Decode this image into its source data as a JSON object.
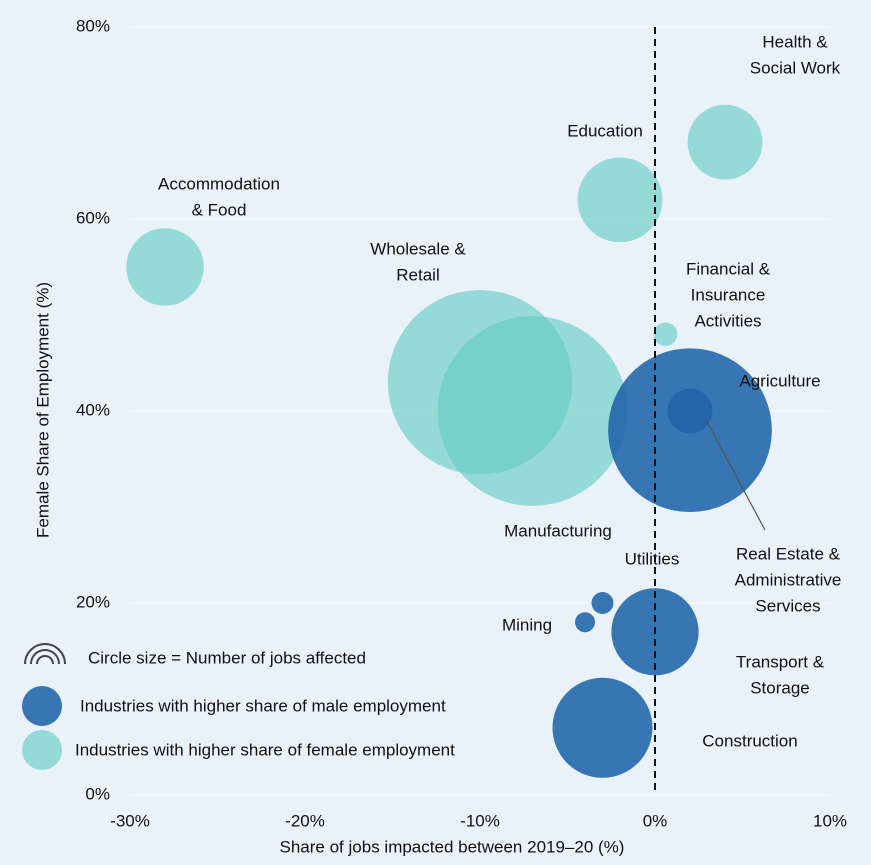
{
  "chart_data": {
    "type": "scatter",
    "x_label": "Share of jobs impacted between 2019–20 (%)",
    "y_label": "Female Share of Employment (%)",
    "size_legend": "Circle size = Number of jobs affected",
    "xlim": [
      -30,
      10
    ],
    "ylim": [
      0,
      80
    ],
    "xticks": [
      {
        "value": -30,
        "label": "-30%"
      },
      {
        "value": -20,
        "label": "-20%"
      },
      {
        "value": -10,
        "label": "-10%"
      },
      {
        "value": 0,
        "label": "0%"
      },
      {
        "value": 10,
        "label": "10%"
      }
    ],
    "yticks": [
      {
        "value": 0,
        "label": "0%"
      },
      {
        "value": 20,
        "label": "20%"
      },
      {
        "value": 40,
        "label": "40%"
      },
      {
        "value": 60,
        "label": "60%"
      },
      {
        "value": 80,
        "label": "80%"
      }
    ],
    "vline": 0,
    "grid": true,
    "series": [
      {
        "name": "Industries with higher share of female employment",
        "color": "#62cbc3",
        "labels": [
          [
            "Health &",
            "Social Work"
          ],
          [
            "Education"
          ],
          [
            "Accommodation",
            "& Food"
          ],
          [
            "Wholesale &",
            "Retail"
          ],
          [
            "Manufacturing"
          ],
          [
            "Financial &",
            "Insurance",
            "Activities"
          ]
        ],
        "x": [
          4,
          -2,
          -28,
          -10,
          -7,
          0.6
        ],
        "values": [
          68,
          62,
          55,
          43,
          40,
          48
        ],
        "sizes": [
          14,
          18,
          15,
          85,
          90,
          1.4
        ]
      },
      {
        "name": "Industries with higher share of male employment",
        "color": "#1f63a8",
        "labels": [
          [
            "Agriculture"
          ],
          [
            "Real Estate &",
            "Administrative",
            "Services"
          ],
          [
            "Utilities"
          ],
          [
            "Mining"
          ],
          [
            "Transport &",
            "Storage"
          ],
          [
            "Construction"
          ]
        ],
        "x": [
          2,
          2,
          -3,
          -4,
          0,
          -3
        ],
        "values": [
          38,
          40,
          20,
          18,
          17,
          7
        ],
        "sizes": [
          67,
          5,
          1.2,
          1,
          19,
          25
        ]
      }
    ]
  }
}
